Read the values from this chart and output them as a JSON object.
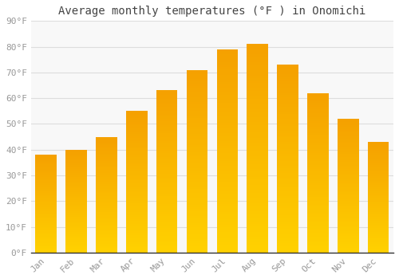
{
  "title": "Average monthly temperatures (°F ) in Onomichi",
  "months": [
    "Jan",
    "Feb",
    "Mar",
    "Apr",
    "May",
    "Jun",
    "Jul",
    "Aug",
    "Sep",
    "Oct",
    "Nov",
    "Dec"
  ],
  "values": [
    38,
    40,
    45,
    55,
    63,
    71,
    79,
    81,
    73,
    62,
    52,
    43
  ],
  "ylim": [
    0,
    90
  ],
  "yticks": [
    0,
    10,
    20,
    30,
    40,
    50,
    60,
    70,
    80,
    90
  ],
  "ytick_labels": [
    "0°F",
    "10°F",
    "20°F",
    "30°F",
    "40°F",
    "50°F",
    "60°F",
    "70°F",
    "80°F",
    "90°F"
  ],
  "background_color": "#ffffff",
  "plot_bg_color": "#f8f8f8",
  "grid_color": "#dddddd",
  "title_fontsize": 10,
  "tick_fontsize": 8,
  "bar_color_bottom": "#FFD000",
  "bar_color_top": "#F5A000",
  "bar_width": 0.7
}
